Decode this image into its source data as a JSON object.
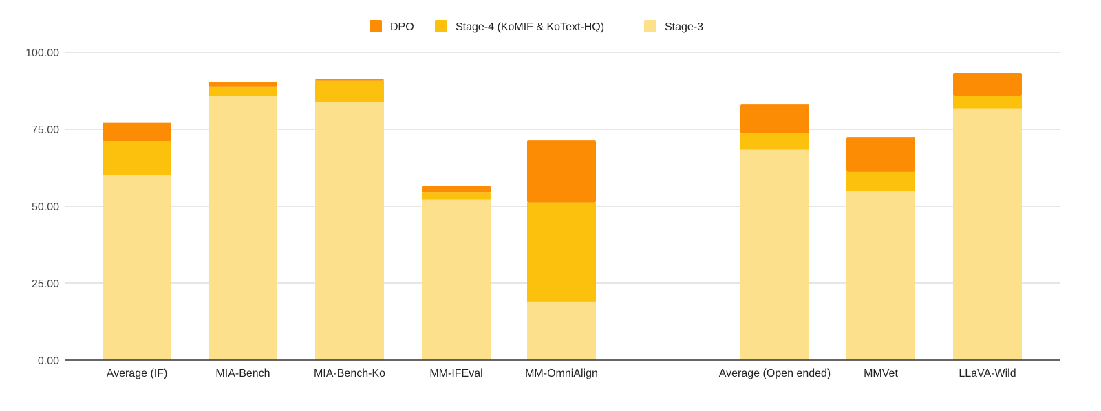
{
  "chart_data": {
    "type": "bar",
    "stacked": true,
    "title": "",
    "xlabel": "",
    "ylabel": "",
    "ylim": [
      0,
      100
    ],
    "yticks": [
      "0.00",
      "25.00",
      "50.00",
      "75.00",
      "100.00"
    ],
    "ytick_values": [
      0,
      25,
      50,
      75,
      100
    ],
    "legend_position": "top",
    "gridlines": true,
    "categories": [
      "Average (IF)",
      "MIA-Bench",
      "MIA-Bench-Ko",
      "MM-IFEval",
      "MM-OmniAlign",
      "",
      "Average (Open ended)",
      "MMVet",
      "LLaVA-Wild"
    ],
    "series": [
      {
        "name": "Stage-3",
        "color": "#fde08b",
        "values": [
          60.2,
          85.9,
          83.8,
          52.1,
          19.0,
          null,
          68.4,
          54.9,
          81.8
        ]
      },
      {
        "name": "Stage-4 (KoMIF & KoText-HQ)",
        "color": "#fcc10c",
        "values": [
          11.0,
          3.0,
          6.9,
          2.3,
          32.2,
          null,
          5.2,
          6.3,
          4.1
        ]
      },
      {
        "name": "DPO",
        "color": "#fc8c04",
        "values": [
          5.9,
          1.3,
          0.6,
          2.2,
          20.2,
          null,
          9.4,
          11.1,
          7.4
        ]
      }
    ],
    "legend_order": [
      "DPO",
      "Stage-4 (KoMIF & KoText-HQ)",
      "Stage-3"
    ]
  }
}
